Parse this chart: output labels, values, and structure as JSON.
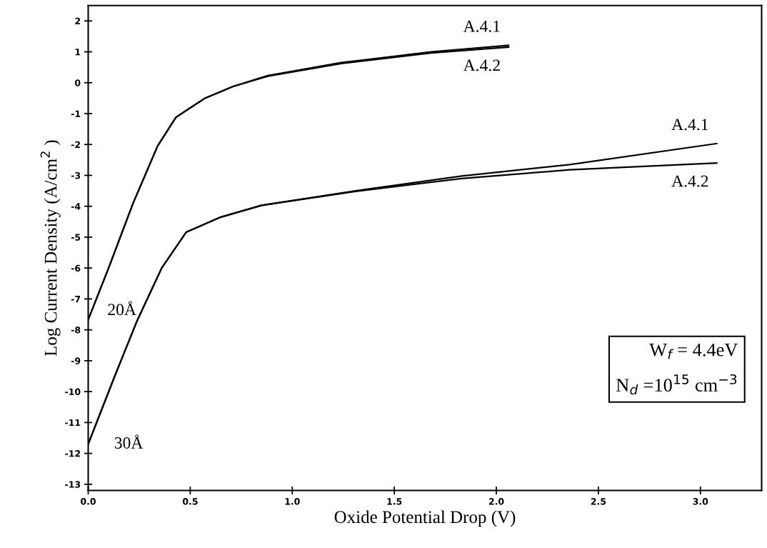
{
  "chart_data": {
    "type": "line",
    "xlabel": "Oxide Potential Drop (V)",
    "ylabel": "Log Current Density (A/cm$^{2}$ )",
    "xlim": [
      0,
      3.3
    ],
    "ylim": [
      -13.2,
      2.5
    ],
    "xticks": [
      {
        "value": 0,
        "label": "0.0"
      },
      {
        "value": 0.5,
        "label": "0.5"
      },
      {
        "value": 1,
        "label": "1.0"
      },
      {
        "value": 1.5,
        "label": "1.5"
      },
      {
        "value": 2,
        "label": "2.0"
      },
      {
        "value": 2.5,
        "label": "2.5"
      },
      {
        "value": 3,
        "label": "3.0"
      }
    ],
    "yticks": [
      2,
      1,
      0,
      -1,
      -2,
      -3,
      -4,
      -5,
      -6,
      -7,
      -8,
      -9,
      -10,
      -11,
      -12,
      -13
    ],
    "grid": false,
    "legend": false,
    "marker": "none",
    "line_style": "solid",
    "series": [
      {
        "name": "A.4.1",
        "color": "#000000",
        "x": [
          0,
          0.1,
          0.22,
          0.34,
          0.43,
          0.57,
          0.71,
          0.88,
          1.24,
          1.68,
          2.06
        ],
        "values": [
          -7.67,
          -6.0,
          -3.9,
          -2.05,
          -1.12,
          -0.51,
          -0.12,
          0.23,
          0.65,
          1.0,
          1.21
        ]
      },
      {
        "name": "A.4.2",
        "color": "#000000",
        "x": [
          0,
          0.1,
          0.22,
          0.34,
          0.43,
          0.57,
          0.71,
          0.88,
          1.24,
          1.68,
          2.06
        ],
        "values": [
          -7.67,
          -6.0,
          -3.9,
          -2.05,
          -1.12,
          -0.51,
          -0.12,
          0.21,
          0.62,
          0.96,
          1.15
        ]
      },
      {
        "name": "A.4.1",
        "color": "#000000",
        "x": [
          0,
          0.13,
          0.24,
          0.36,
          0.48,
          0.65,
          0.85,
          1.31,
          1.83,
          2.36,
          3.08
        ],
        "values": [
          -11.7,
          -9.5,
          -7.7,
          -6.0,
          -4.84,
          -4.35,
          -3.97,
          -3.5,
          -3.02,
          -2.65,
          -1.97
        ]
      },
      {
        "name": "A.4.2",
        "color": "#000000",
        "x": [
          0,
          0.13,
          0.24,
          0.36,
          0.48,
          0.65,
          0.85,
          1.31,
          1.83,
          2.36,
          3.08
        ],
        "values": [
          -11.7,
          -9.5,
          -7.7,
          -6.0,
          -4.84,
          -4.35,
          -3.97,
          -3.52,
          -3.1,
          -2.82,
          -2.6
        ]
      }
    ],
    "annotations": [
      "20Å",
      "30Å",
      "W$_{f}$ = 4.4eV",
      "N$_{d}$ =10$^{15}$ cm$^{−3}$"
    ]
  }
}
